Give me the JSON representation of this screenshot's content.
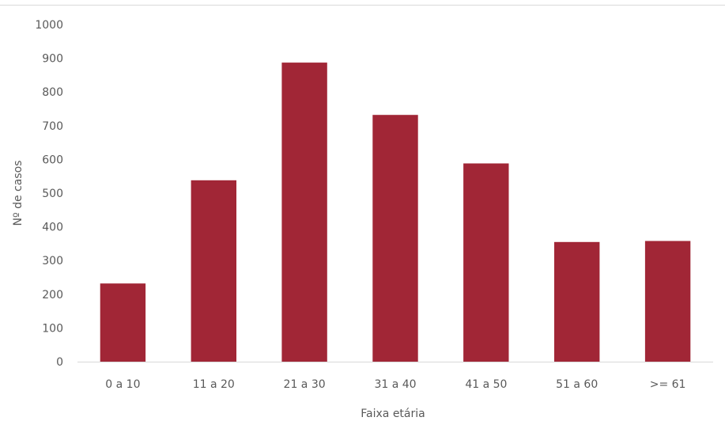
{
  "chart_data": {
    "type": "bar",
    "categories": [
      "0 a 10",
      "11 a 20",
      "21 a 30",
      "31 a 40",
      "41 a 50",
      "51 a 60",
      ">= 61"
    ],
    "values": [
      232,
      538,
      887,
      732,
      588,
      355,
      358
    ],
    "xlabel": "Faixa etária",
    "ylabel": "Nº de casos",
    "ylim": [
      0,
      1000
    ],
    "yticks": [
      0,
      100,
      200,
      300,
      400,
      500,
      600,
      700,
      800,
      900,
      1000
    ],
    "grid": false,
    "bar_color": "#A12636",
    "axis_color": "#D9D9D9",
    "text_color": "#595959"
  }
}
